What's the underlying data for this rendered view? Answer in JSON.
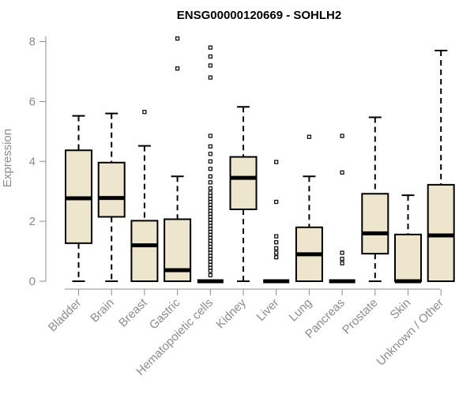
{
  "chart_data": {
    "type": "box",
    "title": "ENSG00000120669 - SOHLH2",
    "xlabel": "",
    "ylabel": "Expression",
    "ylim": [
      0,
      8.2
    ],
    "yticks": [
      0,
      2,
      4,
      6,
      8
    ],
    "grid": false,
    "box_color": "#ede6cc",
    "categories": [
      "Bladder",
      "Brain",
      "Breast",
      "Gastric",
      "Hematopoietic cells",
      "Kidney",
      "Liver",
      "Lung",
      "Pancreas",
      "Prostate",
      "Skin",
      "Unknown / Other"
    ],
    "boxes": [
      {
        "category": "Bladder",
        "whisker_low": 0,
        "q1": 1.27,
        "median": 2.77,
        "q3": 4.37,
        "whisker_high": 5.52,
        "outliers": []
      },
      {
        "category": "Brain",
        "whisker_low": 0,
        "q1": 2.15,
        "median": 2.78,
        "q3": 3.96,
        "whisker_high": 5.6,
        "outliers": []
      },
      {
        "category": "Breast",
        "whisker_low": 0,
        "q1": 0,
        "median": 1.2,
        "q3": 2.02,
        "whisker_high": 4.52,
        "outliers": [
          5.65
        ]
      },
      {
        "category": "Gastric",
        "whisker_low": 0,
        "q1": 0,
        "median": 0.37,
        "q3": 2.07,
        "whisker_high": 3.5,
        "outliers": [
          7.1,
          8.1
        ]
      },
      {
        "category": "Hematopoietic cells",
        "whisker_low": 0,
        "q1": 0,
        "median": 0,
        "q3": 0,
        "whisker_high": 0,
        "outliers": [
          0.2,
          0.35,
          0.45,
          0.55,
          0.65,
          0.75,
          0.85,
          0.95,
          1.05,
          1.15,
          1.25,
          1.35,
          1.45,
          1.55,
          1.65,
          1.75,
          1.85,
          1.95,
          2.05,
          2.15,
          2.25,
          2.35,
          2.45,
          2.55,
          2.65,
          2.75,
          2.85,
          2.95,
          3.1,
          3.3,
          3.5,
          3.75,
          4.0,
          4.25,
          4.5,
          4.85,
          6.8,
          7.2,
          7.5,
          7.8
        ]
      },
      {
        "category": "Kidney",
        "whisker_low": 0,
        "q1": 2.4,
        "median": 3.45,
        "q3": 4.15,
        "whisker_high": 5.82,
        "outliers": []
      },
      {
        "category": "Liver",
        "whisker_low": 0,
        "q1": 0,
        "median": 0,
        "q3": 0,
        "whisker_high": 0,
        "outliers": [
          0.8,
          0.95,
          1.1,
          1.3,
          1.5,
          2.65,
          3.98
        ]
      },
      {
        "category": "Lung",
        "whisker_low": 0,
        "q1": 0,
        "median": 0.9,
        "q3": 1.8,
        "whisker_high": 3.5,
        "outliers": [
          4.82
        ]
      },
      {
        "category": "Pancreas",
        "whisker_low": 0,
        "q1": 0,
        "median": 0,
        "q3": 0,
        "whisker_high": 0,
        "outliers": [
          0.6,
          0.75,
          0.95,
          3.63,
          4.85
        ]
      },
      {
        "category": "Prostate",
        "whisker_low": 0,
        "q1": 0.92,
        "median": 1.6,
        "q3": 2.92,
        "whisker_high": 5.47,
        "outliers": []
      },
      {
        "category": "Skin",
        "whisker_low": 0,
        "q1": 0,
        "median": 0,
        "q3": 1.56,
        "whisker_high": 2.87,
        "outliers": []
      },
      {
        "category": "Unknown / Other",
        "whisker_low": 0,
        "q1": 0,
        "median": 1.53,
        "q3": 3.22,
        "whisker_high": 7.7,
        "outliers": []
      }
    ]
  }
}
